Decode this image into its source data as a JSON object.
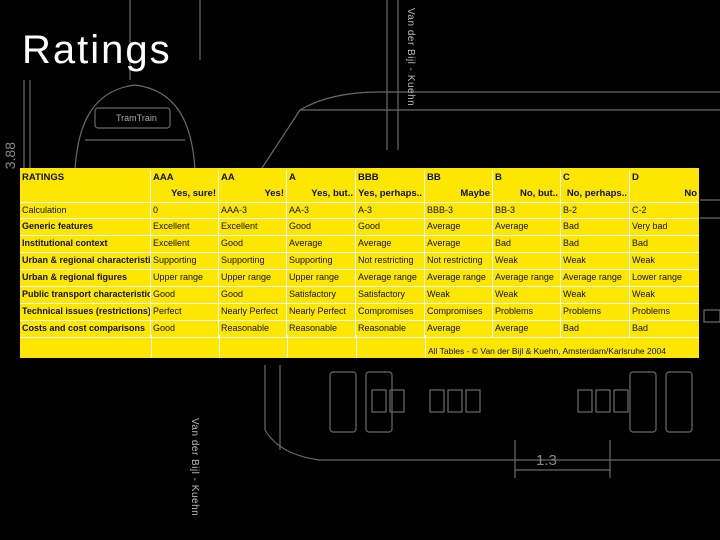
{
  "slide": {
    "title": "Ratings",
    "credit_top": "Van der Bijl - Kuehn",
    "credit_bottom": "Van der Bijl - Kuehn",
    "drawing": {
      "vehicle_label": "TramTrain",
      "height_dim": "3.88",
      "width_dim": "1.3"
    }
  },
  "table": {
    "header": [
      "RATINGS",
      "AAA",
      "AA",
      "A",
      "BBB",
      "BB",
      "B",
      "C",
      "D"
    ],
    "subheader": [
      "",
      "Yes, sure!",
      "Yes!",
      "Yes, but..",
      "Yes, perhaps..",
      "Maybe",
      "No, but..",
      "No, perhaps..",
      "No"
    ],
    "rows": [
      {
        "label": "Calculation",
        "values": [
          "0",
          "AAA-3",
          "AA-3",
          "A-3",
          "BBB-3",
          "BB-3",
          "B-2",
          "C-2"
        ]
      },
      {
        "label": "Generic features",
        "values": [
          "Excellent",
          "Excellent",
          "Good",
          "Good",
          "Average",
          "Average",
          "Bad",
          "Very bad"
        ]
      },
      {
        "label": "Institutional context",
        "values": [
          "Excellent",
          "Good",
          "Average",
          "Average",
          "Average",
          "Bad",
          "Bad",
          "Bad"
        ]
      },
      {
        "label": "Urban & regional characteristics",
        "values": [
          "Supporting",
          "Supporting",
          "Supporting",
          "Not restricting",
          "Not restricting",
          "Weak",
          "Weak",
          "Weak"
        ]
      },
      {
        "label": "Urban & regional figures",
        "values": [
          "Upper range",
          "Upper range",
          "Upper range",
          "Average range",
          "Average range",
          "Average range",
          "Average range",
          "Lower range"
        ]
      },
      {
        "label": "Public transport characteristics",
        "values": [
          "Good",
          "Good",
          "Satisfactory",
          "Satisfactory",
          "Weak",
          "Weak",
          "Weak",
          "Weak"
        ]
      },
      {
        "label": "Technical issues (restrictions)",
        "values": [
          "Perfect",
          "Nearly Perfect",
          "Nearly Perfect",
          "Compromises",
          "Compromises",
          "Problems",
          "Problems",
          "Problems"
        ]
      },
      {
        "label": "Costs and cost comparisons",
        "values": [
          "Good",
          "Reasonable",
          "Reasonable",
          "Reasonable",
          "Average",
          "Average",
          "Bad",
          "Bad"
        ]
      }
    ],
    "footer": "All Tables - © Van der Bijl & Kuehn, Amsterdam/Karlsruhe 2004"
  },
  "colors": {
    "background": "#000000",
    "table_fill": "#fde600",
    "title_text": "#ffffff"
  }
}
